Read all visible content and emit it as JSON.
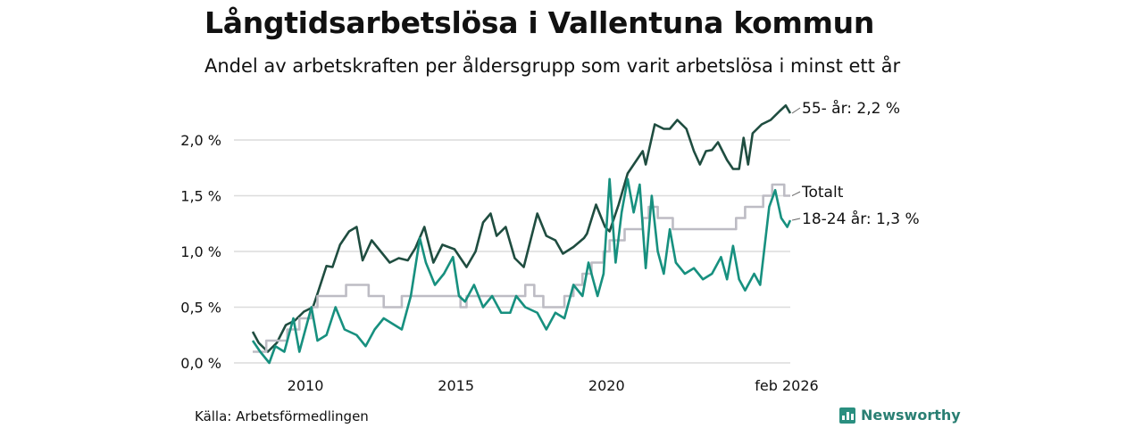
{
  "chart_data": {
    "type": "line",
    "title": "Långtidsarbetslösa i Vallentuna kommun",
    "subtitle": "Andel av arbetskraften per åldersgrupp som varit arbetslösa i minst ett år",
    "xlabel": "",
    "ylabel": "",
    "xlim": [
      2008.25,
      2026.1
    ],
    "ylim": [
      0,
      2.4
    ],
    "x_ticks": [
      {
        "value": 2010,
        "label": "2010"
      },
      {
        "value": 2015,
        "label": "2015"
      },
      {
        "value": 2020,
        "label": "2020"
      },
      {
        "value": 2026.1,
        "label": "feb 2026"
      }
    ],
    "y_ticks": [
      {
        "value": 0,
        "label": "0,0 %"
      },
      {
        "value": 0.5,
        "label": "0,5 %"
      },
      {
        "value": 1.0,
        "label": "1,0 %"
      },
      {
        "value": 1.5,
        "label": "1,5 %"
      },
      {
        "value": 2.0,
        "label": "2,0 %"
      }
    ],
    "grid": true,
    "series": [
      {
        "name": "55- år",
        "end_label": "55- år: 2,2 %",
        "color": "#1f4d40",
        "x": [
          2008.25,
          2008.45,
          2008.75,
          2009.05,
          2009.35,
          2009.65,
          2009.95,
          2010.25,
          2010.4,
          2010.7,
          2010.9,
          2011.15,
          2011.45,
          2011.7,
          2011.9,
          2012.2,
          2012.5,
          2012.8,
          2013.1,
          2013.4,
          2013.65,
          2013.95,
          2014.25,
          2014.55,
          2014.95,
          2015.35,
          2015.65,
          2015.9,
          2016.15,
          2016.35,
          2016.65,
          2016.95,
          2017.25,
          2017.7,
          2018.0,
          2018.3,
          2018.55,
          2018.9,
          2019.25,
          2019.35,
          2019.65,
          2019.95,
          2020.1,
          2020.4,
          2020.7,
          2021.0,
          2021.2,
          2021.3,
          2021.6,
          2021.9,
          2022.1,
          2022.35,
          2022.65,
          2022.9,
          2023.1,
          2023.3,
          2023.5,
          2023.7,
          2024.0,
          2024.2,
          2024.4,
          2024.55,
          2024.7,
          2024.85,
          2025.15,
          2025.45,
          2025.75,
          2025.95,
          2026.1
        ],
        "y": [
          0.28,
          0.18,
          0.1,
          0.18,
          0.34,
          0.38,
          0.46,
          0.5,
          0.62,
          0.87,
          0.86,
          1.06,
          1.18,
          1.22,
          0.92,
          1.1,
          1.0,
          0.9,
          0.94,
          0.92,
          1.03,
          1.22,
          0.9,
          1.06,
          1.02,
          0.86,
          1.0,
          1.26,
          1.34,
          1.14,
          1.22,
          0.94,
          0.86,
          1.34,
          1.14,
          1.1,
          0.98,
          1.04,
          1.12,
          1.16,
          1.42,
          1.22,
          1.18,
          1.42,
          1.7,
          1.82,
          1.9,
          1.78,
          2.14,
          2.1,
          2.1,
          2.18,
          2.1,
          1.9,
          1.78,
          1.9,
          1.91,
          1.98,
          1.82,
          1.74,
          1.74,
          2.02,
          1.78,
          2.06,
          2.14,
          2.18,
          2.26,
          2.31,
          2.24
        ]
      },
      {
        "name": "Totalt",
        "end_label": "Totalt",
        "color": "#bdbcc4",
        "step": true,
        "x": [
          2008.25,
          2008.7,
          2009.4,
          2009.8,
          2010.2,
          2010.4,
          2011.35,
          2012.1,
          2012.6,
          2013.2,
          2013.5,
          2015.15,
          2015.35,
          2015.7,
          2017.3,
          2017.6,
          2017.9,
          2018.6,
          2018.9,
          2019.2,
          2019.5,
          2019.9,
          2020.1,
          2020.6,
          2021.2,
          2021.4,
          2021.7,
          2022.2,
          2023.3,
          2024.3,
          2024.6,
          2024.9,
          2025.2,
          2025.5,
          2025.7,
          2025.9,
          2026.1
        ],
        "y": [
          0.1,
          0.2,
          0.3,
          0.4,
          0.5,
          0.6,
          0.7,
          0.6,
          0.5,
          0.6,
          0.6,
          0.5,
          0.6,
          0.6,
          0.7,
          0.6,
          0.5,
          0.6,
          0.7,
          0.8,
          0.9,
          1.0,
          1.1,
          1.2,
          1.3,
          1.4,
          1.3,
          1.2,
          1.2,
          1.3,
          1.4,
          1.4,
          1.5,
          1.6,
          1.6,
          1.5,
          1.5
        ]
      },
      {
        "name": "18-24 år",
        "end_label": "18-24 år: 1,3 %",
        "color": "#17907f",
        "x": [
          2008.25,
          2008.5,
          2008.8,
          2009.0,
          2009.3,
          2009.6,
          2009.8,
          2010.0,
          2010.2,
          2010.4,
          2010.7,
          2011.0,
          2011.3,
          2011.7,
          2012.0,
          2012.3,
          2012.6,
          2012.9,
          2013.2,
          2013.5,
          2013.8,
          2014.0,
          2014.3,
          2014.6,
          2014.9,
          2015.1,
          2015.3,
          2015.6,
          2015.9,
          2016.2,
          2016.5,
          2016.8,
          2017.0,
          2017.3,
          2017.7,
          2018.0,
          2018.3,
          2018.6,
          2018.9,
          2019.2,
          2019.4,
          2019.7,
          2019.9,
          2020.1,
          2020.3,
          2020.5,
          2020.7,
          2020.9,
          2021.1,
          2021.3,
          2021.5,
          2021.7,
          2021.9,
          2022.1,
          2022.3,
          2022.6,
          2022.9,
          2023.2,
          2023.5,
          2023.8,
          2024.0,
          2024.2,
          2024.4,
          2024.6,
          2024.9,
          2025.1,
          2025.4,
          2025.6,
          2025.8,
          2026.0,
          2026.1
        ],
        "y": [
          0.2,
          0.1,
          0.0,
          0.15,
          0.1,
          0.4,
          0.1,
          0.3,
          0.5,
          0.2,
          0.25,
          0.5,
          0.3,
          0.25,
          0.15,
          0.3,
          0.4,
          0.35,
          0.3,
          0.6,
          1.12,
          0.9,
          0.7,
          0.8,
          0.95,
          0.6,
          0.55,
          0.7,
          0.5,
          0.6,
          0.45,
          0.45,
          0.6,
          0.5,
          0.45,
          0.3,
          0.45,
          0.4,
          0.7,
          0.6,
          0.9,
          0.6,
          0.8,
          1.65,
          0.9,
          1.35,
          1.65,
          1.35,
          1.6,
          0.85,
          1.5,
          1.0,
          0.8,
          1.2,
          0.9,
          0.8,
          0.85,
          0.75,
          0.8,
          0.95,
          0.75,
          1.05,
          0.75,
          0.65,
          0.8,
          0.7,
          1.4,
          1.55,
          1.3,
          1.22,
          1.28
        ]
      }
    ]
  },
  "source": "Källa: Arbetsförmedlingen",
  "logo": "Newsworthy"
}
